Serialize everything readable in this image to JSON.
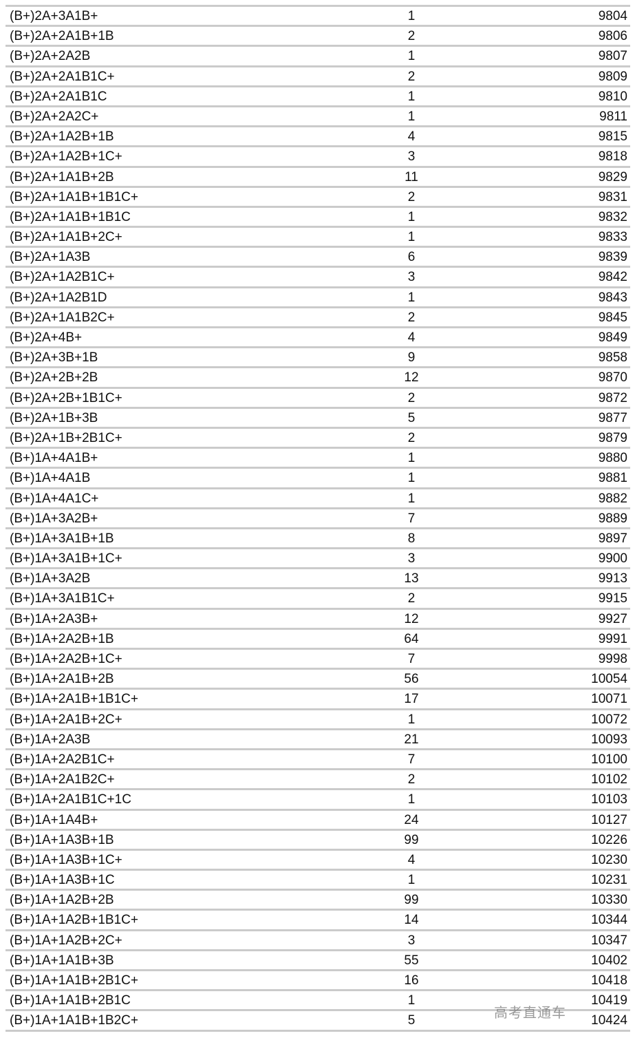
{
  "rows": [
    [
      "(B+)2A+3A1B+",
      "1",
      "9804"
    ],
    [
      "(B+)2A+2A1B+1B",
      "2",
      "9806"
    ],
    [
      "(B+)2A+2A2B",
      "1",
      "9807"
    ],
    [
      "(B+)2A+2A1B1C+",
      "2",
      "9809"
    ],
    [
      "(B+)2A+2A1B1C",
      "1",
      "9810"
    ],
    [
      "(B+)2A+2A2C+",
      "1",
      "9811"
    ],
    [
      "(B+)2A+1A2B+1B",
      "4",
      "9815"
    ],
    [
      "(B+)2A+1A2B+1C+",
      "3",
      "9818"
    ],
    [
      "(B+)2A+1A1B+2B",
      "11",
      "9829"
    ],
    [
      "(B+)2A+1A1B+1B1C+",
      "2",
      "9831"
    ],
    [
      "(B+)2A+1A1B+1B1C",
      "1",
      "9832"
    ],
    [
      "(B+)2A+1A1B+2C+",
      "1",
      "9833"
    ],
    [
      "(B+)2A+1A3B",
      "6",
      "9839"
    ],
    [
      "(B+)2A+1A2B1C+",
      "3",
      "9842"
    ],
    [
      "(B+)2A+1A2B1D",
      "1",
      "9843"
    ],
    [
      "(B+)2A+1A1B2C+",
      "2",
      "9845"
    ],
    [
      "(B+)2A+4B+",
      "4",
      "9849"
    ],
    [
      "(B+)2A+3B+1B",
      "9",
      "9858"
    ],
    [
      "(B+)2A+2B+2B",
      "12",
      "9870"
    ],
    [
      "(B+)2A+2B+1B1C+",
      "2",
      "9872"
    ],
    [
      "(B+)2A+1B+3B",
      "5",
      "9877"
    ],
    [
      "(B+)2A+1B+2B1C+",
      "2",
      "9879"
    ],
    [
      "(B+)1A+4A1B+",
      "1",
      "9880"
    ],
    [
      "(B+)1A+4A1B",
      "1",
      "9881"
    ],
    [
      "(B+)1A+4A1C+",
      "1",
      "9882"
    ],
    [
      "(B+)1A+3A2B+",
      "7",
      "9889"
    ],
    [
      "(B+)1A+3A1B+1B",
      "8",
      "9897"
    ],
    [
      "(B+)1A+3A1B+1C+",
      "3",
      "9900"
    ],
    [
      "(B+)1A+3A2B",
      "13",
      "9913"
    ],
    [
      "(B+)1A+3A1B1C+",
      "2",
      "9915"
    ],
    [
      "(B+)1A+2A3B+",
      "12",
      "9927"
    ],
    [
      "(B+)1A+2A2B+1B",
      "64",
      "9991"
    ],
    [
      "(B+)1A+2A2B+1C+",
      "7",
      "9998"
    ],
    [
      "(B+)1A+2A1B+2B",
      "56",
      "10054"
    ],
    [
      "(B+)1A+2A1B+1B1C+",
      "17",
      "10071"
    ],
    [
      "(B+)1A+2A1B+2C+",
      "1",
      "10072"
    ],
    [
      "(B+)1A+2A3B",
      "21",
      "10093"
    ],
    [
      "(B+)1A+2A2B1C+",
      "7",
      "10100"
    ],
    [
      "(B+)1A+2A1B2C+",
      "2",
      "10102"
    ],
    [
      "(B+)1A+2A1B1C+1C",
      "1",
      "10103"
    ],
    [
      "(B+)1A+1A4B+",
      "24",
      "10127"
    ],
    [
      "(B+)1A+1A3B+1B",
      "99",
      "10226"
    ],
    [
      "(B+)1A+1A3B+1C+",
      "4",
      "10230"
    ],
    [
      "(B+)1A+1A3B+1C",
      "1",
      "10231"
    ],
    [
      "(B+)1A+1A2B+2B",
      "99",
      "10330"
    ],
    [
      "(B+)1A+1A2B+1B1C+",
      "14",
      "10344"
    ],
    [
      "(B+)1A+1A2B+2C+",
      "3",
      "10347"
    ],
    [
      "(B+)1A+1A1B+3B",
      "55",
      "10402"
    ],
    [
      "(B+)1A+1A1B+2B1C+",
      "16",
      "10418"
    ],
    [
      "(B+)1A+1A1B+2B1C",
      "1",
      "10419"
    ],
    [
      "(B+)1A+1A1B+1B2C+",
      "5",
      "10424"
    ]
  ],
  "watermark": "高考直通车"
}
